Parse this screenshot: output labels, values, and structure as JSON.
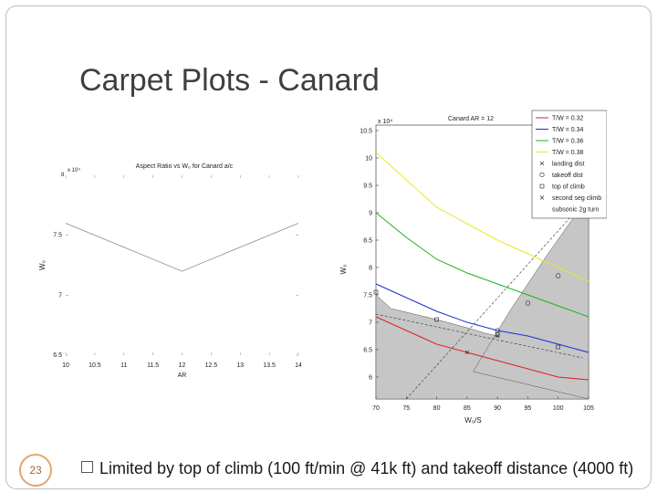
{
  "slide": {
    "title": "Carpet Plots - Canard",
    "page_number": "23",
    "bullet": "Limited by top of climb (100 ft/min @ 41k ft) and takeoff distance (4000 ft)"
  },
  "chart_data": [
    {
      "type": "line",
      "title": "Aspect Ratio vs W₀ for Canard a/c",
      "xlabel": "AR",
      "ylabel": "W₀",
      "y_multiplier": "x 10⁴",
      "y_multiplier_prefix": "8",
      "xlim": [
        10,
        14
      ],
      "ylim": [
        6.5,
        8
      ],
      "x_ticks": [
        "10",
        "10.5",
        "11",
        "11.5",
        "12",
        "12.5",
        "13",
        "13.5",
        "14"
      ],
      "y_ticks": [
        "6.5",
        "7",
        "7.5"
      ],
      "series": [
        {
          "x": [
            10,
            10.5,
            11,
            11.5,
            12,
            12.5,
            13,
            13.5,
            14
          ],
          "y": [
            7.6,
            7.5,
            7.4,
            7.3,
            7.2,
            7.3,
            7.4,
            7.5,
            7.6
          ]
        }
      ]
    },
    {
      "type": "line",
      "title": "Canard AR = 12",
      "xlabel": "W₀/S",
      "ylabel": "W₀",
      "y_multiplier": "x 10⁴",
      "xlim": [
        70,
        105
      ],
      "ylim": [
        5.6,
        10.6
      ],
      "x_ticks": [
        "70",
        "75",
        "80",
        "85",
        "90",
        "95",
        "100",
        "105"
      ],
      "y_ticks": [
        "6",
        "6.5",
        "7",
        "7.5",
        "8",
        "8.5",
        "9",
        "9.5",
        "10",
        "10.5"
      ],
      "series": [
        {
          "name": "T/W = 0.32",
          "color": "#e02020",
          "x": [
            70,
            75,
            80,
            85,
            90,
            95,
            100,
            105
          ],
          "y": [
            7.1,
            6.85,
            6.6,
            6.45,
            6.3,
            6.15,
            6.0,
            5.95
          ]
        },
        {
          "name": "T/W = 0.34",
          "color": "#1c2fcf",
          "x": [
            70,
            75,
            80,
            85,
            90,
            95,
            100,
            105
          ],
          "y": [
            7.7,
            7.45,
            7.2,
            7.0,
            6.85,
            6.75,
            6.6,
            6.45
          ]
        },
        {
          "name": "T/W = 0.36",
          "color": "#21b021",
          "x": [
            70,
            75,
            80,
            85,
            90,
            95,
            100,
            105
          ],
          "y": [
            9.0,
            8.55,
            8.15,
            7.9,
            7.7,
            7.5,
            7.3,
            7.1
          ]
        },
        {
          "name": "T/W = 0.38",
          "color": "#e8e823",
          "x": [
            70,
            75,
            80,
            85,
            90,
            95,
            100,
            105
          ],
          "y": [
            10.1,
            9.6,
            9.1,
            8.8,
            8.5,
            8.25,
            8.0,
            7.75
          ]
        }
      ],
      "constraints": [
        {
          "name": "landing dist",
          "marker": "x"
        },
        {
          "name": "takeoff dist",
          "marker": "o"
        },
        {
          "name": "top of climb",
          "marker": "square"
        },
        {
          "name": "second seg climb",
          "marker": "x"
        },
        {
          "name": "subsonic 2g turn",
          "marker": "none"
        }
      ],
      "legend_position": "top-right",
      "feasible_region": "shaded gray"
    }
  ]
}
